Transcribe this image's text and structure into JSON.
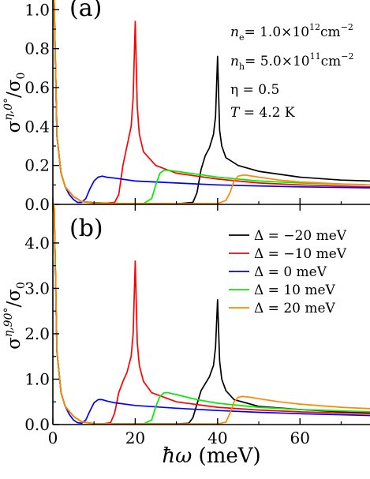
{
  "chart_data": [
    {
      "panel_label": "(a)",
      "type": "line",
      "title": "",
      "xlabel": "",
      "ylabel": {
        "sigma": "σ",
        "sup": "η,0°",
        "slash": "/σ",
        "sub": "0"
      },
      "xlim": [
        0,
        77
      ],
      "ylim": [
        0,
        1.05
      ],
      "yticks": [
        0.0,
        0.2,
        0.4,
        0.6,
        0.8,
        1.0
      ],
      "ytick_labels": [
        "0.0",
        "0.2",
        "0.4",
        "0.6",
        "0.8",
        "1.0"
      ],
      "xticks": [
        0,
        20,
        40,
        60
      ],
      "annotations": {
        "ne": {
          "sym": "n",
          "sub": "e",
          "rest": "= 1.0×10",
          "exp": "12",
          "unit": "cm",
          "uexp": "−2"
        },
        "nh": {
          "sym": "n",
          "sub": "h",
          "rest": "= 5.0×10",
          "exp": "11",
          "unit": "cm",
          "uexp": "−2"
        },
        "eta": "η = 0.5",
        "temp": {
          "sym": "T",
          "rest": " = 4.2 K"
        }
      },
      "series": [
        {
          "name": "Δ = −20 meV",
          "color": "#000000",
          "x": [
            0.3,
            1,
            2,
            3,
            5,
            7,
            10,
            15,
            20,
            25,
            30,
            34,
            35,
            36,
            37,
            38,
            39,
            39.5,
            40,
            40.5,
            41,
            42,
            45,
            50,
            60,
            70,
            77
          ],
          "y": [
            1.05,
            0.35,
            0.16,
            0.09,
            0.04,
            0.015,
            0.008,
            0.005,
            0.004,
            0.004,
            0.003,
            0.01,
            0.06,
            0.18,
            0.25,
            0.29,
            0.36,
            0.45,
            0.76,
            0.38,
            0.3,
            0.24,
            0.2,
            0.17,
            0.14,
            0.125,
            0.12
          ]
        },
        {
          "name": "Δ = −10 meV",
          "color": "#ff0000",
          "x": [
            0.3,
            1,
            2,
            3,
            5,
            7,
            10,
            12,
            15,
            16,
            17,
            18,
            19,
            19.5,
            20,
            20.5,
            21,
            22,
            25,
            30,
            40,
            50,
            60,
            77
          ],
          "y": [
            1.05,
            0.35,
            0.16,
            0.09,
            0.04,
            0.015,
            0.006,
            0.004,
            0.01,
            0.05,
            0.2,
            0.3,
            0.4,
            0.55,
            0.94,
            0.5,
            0.36,
            0.27,
            0.2,
            0.16,
            0.13,
            0.11,
            0.1,
            0.09
          ]
        },
        {
          "name": "Δ =  0  meV",
          "color": "#0000ff",
          "x": [
            0.3,
            1,
            2,
            3,
            4,
            5,
            6,
            7,
            8,
            9,
            10,
            11,
            12,
            13,
            15,
            20,
            30,
            40,
            50,
            60,
            77
          ],
          "y": [
            1.05,
            0.35,
            0.16,
            0.09,
            0.05,
            0.025,
            0.01,
            0.01,
            0.03,
            0.08,
            0.12,
            0.14,
            0.145,
            0.14,
            0.135,
            0.12,
            0.11,
            0.1,
            0.095,
            0.09,
            0.085
          ]
        },
        {
          "name": "Δ = 10 meV",
          "color": "#00ee00",
          "x": [
            0.3,
            1,
            2,
            3,
            5,
            7,
            10,
            15,
            20,
            22,
            24,
            25,
            26,
            27,
            28,
            30,
            35,
            40,
            50,
            60,
            77
          ],
          "y": [
            1.05,
            0.35,
            0.16,
            0.09,
            0.04,
            0.015,
            0.006,
            0.004,
            0.004,
            0.004,
            0.03,
            0.1,
            0.16,
            0.175,
            0.175,
            0.17,
            0.155,
            0.14,
            0.12,
            0.11,
            0.1
          ]
        },
        {
          "name": "Δ = 20 meV",
          "color": "#ff8800",
          "x": [
            0.3,
            1,
            2,
            3,
            5,
            7,
            10,
            20,
            30,
            40,
            42,
            43,
            44,
            45,
            46,
            47,
            50,
            55,
            60,
            70,
            77
          ],
          "y": [
            1.05,
            0.35,
            0.16,
            0.09,
            0.04,
            0.015,
            0.006,
            0.004,
            0.004,
            0.004,
            0.02,
            0.06,
            0.12,
            0.145,
            0.15,
            0.15,
            0.14,
            0.125,
            0.115,
            0.105,
            0.1
          ]
        }
      ]
    },
    {
      "panel_label": "(b)",
      "type": "line",
      "title": "",
      "xlabel": {
        "hbar": "ħ",
        "omega": "ω",
        "rest": " (meV)"
      },
      "ylabel": {
        "sigma": "σ",
        "sup": "η,90°",
        "slash": "/σ",
        "sub": "0"
      },
      "xlim": [
        0,
        77
      ],
      "ylim": [
        0,
        4.85
      ],
      "yticks": [
        0.0,
        1.0,
        2.0,
        3.0,
        4.0
      ],
      "ytick_labels": [
        "0.0",
        "1.0",
        "2.0",
        "3.0",
        "4.0"
      ],
      "xticks": [
        0,
        20,
        40,
        60
      ],
      "xtick_labels": [
        "0",
        "20",
        "40",
        "60"
      ],
      "legend": "top-right",
      "series": [
        {
          "name": "Δ = −20 meV",
          "color": "#000000",
          "x": [
            0.3,
            1,
            2,
            3,
            5,
            7,
            10,
            15,
            20,
            25,
            30,
            33,
            34,
            35,
            36,
            37,
            38,
            39,
            39.5,
            40,
            40.5,
            41,
            42,
            44,
            50,
            60,
            70,
            77
          ],
          "y": [
            4.85,
            1.6,
            0.7,
            0.4,
            0.18,
            0.06,
            0.02,
            0.015,
            0.015,
            0.015,
            0.015,
            0.03,
            0.15,
            0.45,
            0.75,
            0.9,
            1.05,
            1.3,
            1.7,
            2.75,
            1.4,
            1.0,
            0.75,
            0.55,
            0.4,
            0.33,
            0.28,
            0.26
          ]
        },
        {
          "name": "Δ = −10 meV",
          "color": "#ff0000",
          "x": [
            0.3,
            1,
            2,
            3,
            5,
            7,
            10,
            12,
            14,
            15,
            16,
            17,
            18,
            19,
            19.5,
            20,
            20.5,
            21,
            22,
            24,
            30,
            40,
            50,
            60,
            77
          ],
          "y": [
            4.85,
            1.6,
            0.7,
            0.4,
            0.18,
            0.06,
            0.02,
            0.015,
            0.04,
            0.25,
            0.7,
            0.95,
            1.15,
            1.5,
            2.0,
            3.6,
            1.8,
            1.3,
            0.95,
            0.7,
            0.5,
            0.38,
            0.32,
            0.28,
            0.24
          ]
        },
        {
          "name": "Δ =  0  meV",
          "color": "#0000ff",
          "x": [
            0.3,
            1,
            2,
            3,
            4,
            5,
            6,
            7,
            8,
            9,
            10,
            11,
            12,
            13,
            15,
            20,
            30,
            40,
            50,
            60,
            77
          ],
          "y": [
            4.85,
            1.6,
            0.7,
            0.4,
            0.22,
            0.1,
            0.04,
            0.03,
            0.1,
            0.3,
            0.48,
            0.55,
            0.55,
            0.52,
            0.48,
            0.42,
            0.36,
            0.31,
            0.27,
            0.24,
            0.2
          ]
        },
        {
          "name": "Δ = 10 meV",
          "color": "#00ee00",
          "x": [
            0.3,
            1,
            2,
            3,
            5,
            7,
            10,
            15,
            20,
            22,
            24,
            25,
            26,
            27,
            28,
            30,
            35,
            40,
            50,
            60,
            77
          ],
          "y": [
            4.85,
            1.6,
            0.7,
            0.4,
            0.18,
            0.06,
            0.02,
            0.015,
            0.015,
            0.015,
            0.1,
            0.4,
            0.62,
            0.7,
            0.7,
            0.66,
            0.55,
            0.47,
            0.38,
            0.33,
            0.28
          ]
        },
        {
          "name": "Δ = 20 meV",
          "color": "#ff8800",
          "x": [
            0.3,
            1,
            2,
            3,
            5,
            7,
            10,
            20,
            30,
            40,
            42,
            43,
            44,
            45,
            46,
            48,
            50,
            55,
            60,
            70,
            77
          ],
          "y": [
            4.85,
            1.6,
            0.7,
            0.4,
            0.18,
            0.06,
            0.02,
            0.015,
            0.015,
            0.015,
            0.05,
            0.25,
            0.5,
            0.6,
            0.62,
            0.6,
            0.57,
            0.5,
            0.45,
            0.38,
            0.35
          ]
        }
      ]
    }
  ]
}
